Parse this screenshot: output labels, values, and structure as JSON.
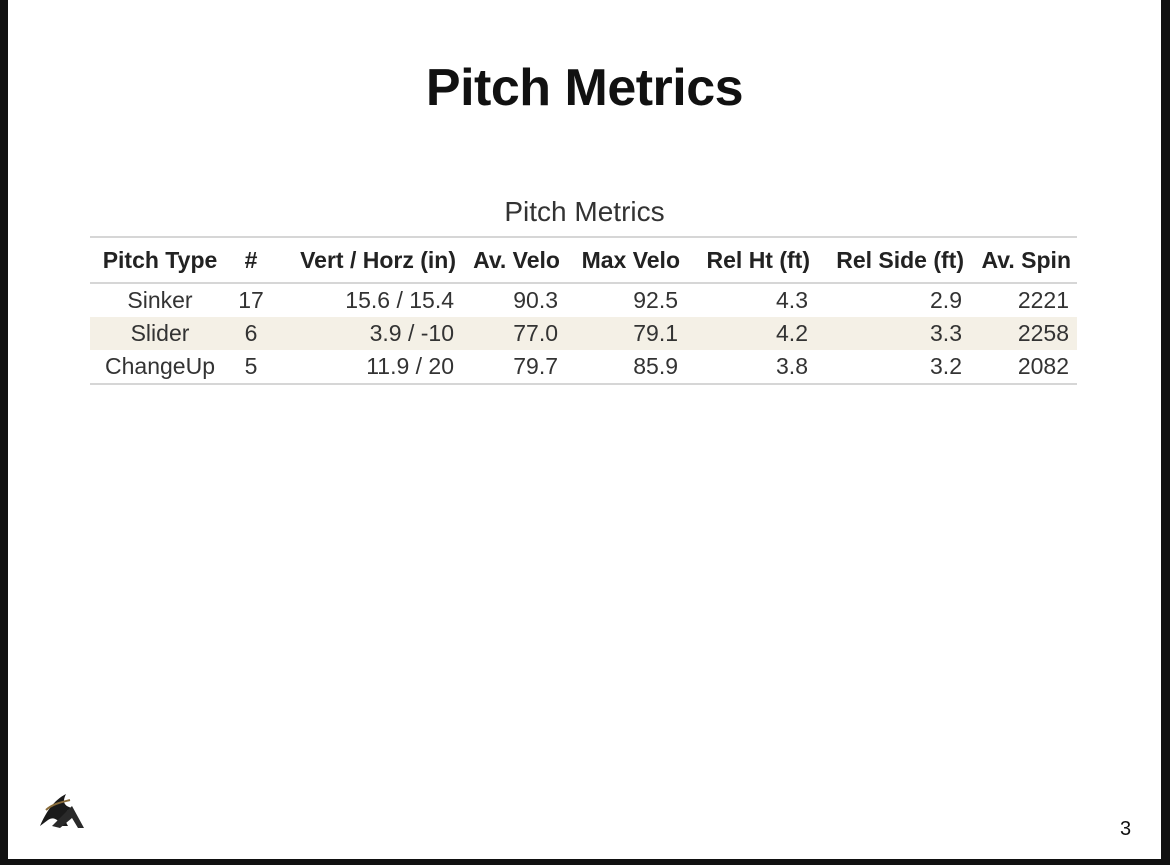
{
  "title": "Pitch Metrics",
  "table": {
    "caption": "Pitch Metrics",
    "header": [
      "Pitch Type",
      "#",
      "Vert / Horz (in)",
      "Av. Velo",
      "Max Velo",
      "Rel Ht (ft)",
      "Rel Side (ft)",
      "Av. Spin"
    ],
    "rows": [
      [
        "Sinker",
        "17",
        "15.6 / 15.4",
        "90.3",
        "92.5",
        "4.3",
        "2.9",
        "2221"
      ],
      [
        "Slider",
        "6",
        "3.9 / -10",
        "77.0",
        "79.1",
        "4.2",
        "3.3",
        "2258"
      ],
      [
        "ChangeUp",
        "5",
        "11.9 / 20",
        "79.7",
        "85.9",
        "3.8",
        "3.2",
        "2082"
      ]
    ]
  },
  "page_number": "3"
}
